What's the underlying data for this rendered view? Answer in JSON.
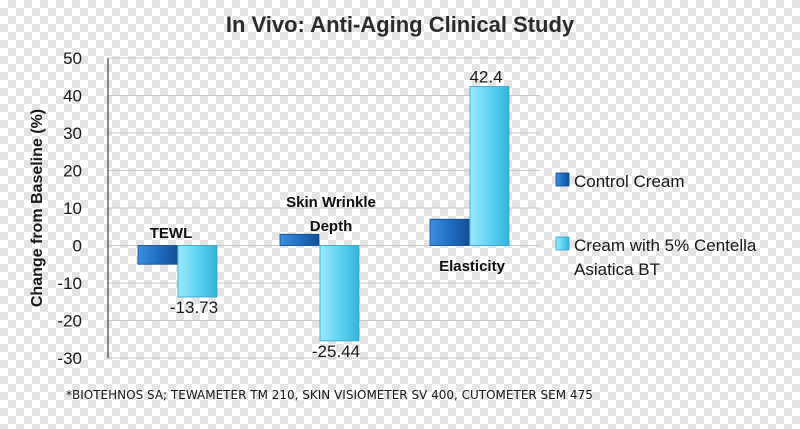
{
  "chart_data": {
    "type": "bar",
    "title": "In Vivo: Anti-Aging Clinical Study",
    "ylabel": "Change from Baseline (%)",
    "xlabel": "",
    "ylim": [
      -30,
      50
    ],
    "yticks": [
      "50",
      "40",
      "30",
      "20",
      "10",
      "0",
      "-10",
      "-20",
      "-30"
    ],
    "grid": true,
    "legend_position": "right",
    "categories": [
      {
        "lines": [
          "TEWL"
        ]
      },
      {
        "lines": [
          "Skin Wrinkle",
          "Depth"
        ]
      },
      {
        "lines": [
          "Elasticity"
        ]
      }
    ],
    "series": [
      {
        "name": "Control Cream",
        "values": [
          -5,
          3,
          7
        ],
        "data_labels": [
          "",
          "",
          ""
        ],
        "color": "#1f6fc4"
      },
      {
        "name": "Cream with 5% Centella Asiatica BT",
        "legend_lines": [
          "Cream with 5% Centella",
          "Asiatica BT"
        ],
        "values": [
          -13.73,
          -25.44,
          42.4
        ],
        "data_labels": [
          "-13.73",
          "-25.44",
          "42.4"
        ],
        "color": "#5fd3f3"
      }
    ],
    "footnote": "*BIOTEHNOS SA; TEWAMETER TM 210, SKIN VISIOMETER SV 400, CUTOMETER SEM 475"
  }
}
